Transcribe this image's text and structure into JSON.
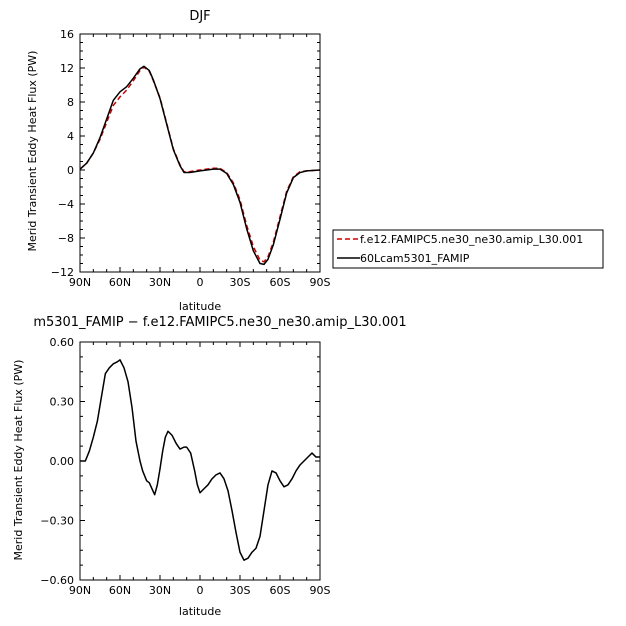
{
  "chart_data": [
    {
      "type": "line",
      "title": "DJF",
      "xlabel": "latitude",
      "ylabel": "Merid Transient Eddy Heat Flux (PW)",
      "xlim": [
        90,
        -90
      ],
      "ylim": [
        -12,
        16
      ],
      "xticks": [
        90,
        60,
        30,
        0,
        -30,
        -60,
        -90
      ],
      "xtick_labels": [
        "90N",
        "60N",
        "30N",
        "0",
        "30S",
        "60S",
        "90S"
      ],
      "yticks": [
        -12,
        -8,
        -4,
        0,
        4,
        8,
        12,
        16
      ],
      "ytick_labels": [
        "−12",
        "−8",
        "−4",
        "0",
        "4",
        "8",
        "12",
        "16"
      ],
      "legend_position": "right",
      "series": [
        {
          "name": "f.e12.FAMIPC5.ne30_ne30.amip_L30.001",
          "color": "#cc0000",
          "dash": "dashed",
          "points": [
            [
              90,
              0.1
            ],
            [
              85,
              0.8
            ],
            [
              80,
              2.0
            ],
            [
              75,
              3.6
            ],
            [
              70,
              5.6
            ],
            [
              65,
              7.6
            ],
            [
              60,
              8.6
            ],
            [
              55,
              9.4
            ],
            [
              50,
              10.5
            ],
            [
              45,
              11.7
            ],
            [
              42,
              12.1
            ],
            [
              38,
              11.6
            ],
            [
              35,
              10.5
            ],
            [
              30,
              8.5
            ],
            [
              25,
              5.5
            ],
            [
              20,
              2.5
            ],
            [
              15,
              0.6
            ],
            [
              12,
              -0.2
            ],
            [
              8,
              -0.2
            ],
            [
              4,
              -0.1
            ],
            [
              0,
              0.0
            ],
            [
              -5,
              0.1
            ],
            [
              -10,
              0.2
            ],
            [
              -15,
              0.2
            ],
            [
              -20,
              -0.3
            ],
            [
              -25,
              -1.5
            ],
            [
              -30,
              -3.5
            ],
            [
              -35,
              -6.5
            ],
            [
              -40,
              -9.0
            ],
            [
              -45,
              -10.6
            ],
            [
              -48,
              -10.8
            ],
            [
              -51,
              -10.2
            ],
            [
              -55,
              -8.5
            ],
            [
              -60,
              -5.5
            ],
            [
              -65,
              -2.5
            ],
            [
              -70,
              -0.8
            ],
            [
              -75,
              -0.2
            ],
            [
              -80,
              -0.1
            ],
            [
              -90,
              0.0
            ]
          ]
        },
        {
          "name": "60Lcam5301_FAMIP",
          "color": "#000000",
          "dash": "solid",
          "points": [
            [
              90,
              0.1
            ],
            [
              85,
              0.8
            ],
            [
              80,
              2.0
            ],
            [
              75,
              3.8
            ],
            [
              70,
              6.0
            ],
            [
              65,
              8.2
            ],
            [
              60,
              9.2
            ],
            [
              55,
              9.8
            ],
            [
              50,
              10.8
            ],
            [
              45,
              11.9
            ],
            [
              42,
              12.2
            ],
            [
              38,
              11.7
            ],
            [
              35,
              10.6
            ],
            [
              30,
              8.4
            ],
            [
              25,
              5.4
            ],
            [
              20,
              2.4
            ],
            [
              15,
              0.5
            ],
            [
              12,
              -0.3
            ],
            [
              8,
              -0.3
            ],
            [
              4,
              -0.2
            ],
            [
              0,
              -0.1
            ],
            [
              -5,
              0.0
            ],
            [
              -10,
              0.1
            ],
            [
              -15,
              0.1
            ],
            [
              -20,
              -0.4
            ],
            [
              -25,
              -1.7
            ],
            [
              -30,
              -3.8
            ],
            [
              -35,
              -6.9
            ],
            [
              -40,
              -9.5
            ],
            [
              -45,
              -11.0
            ],
            [
              -48,
              -11.1
            ],
            [
              -51,
              -10.5
            ],
            [
              -55,
              -8.8
            ],
            [
              -60,
              -5.8
            ],
            [
              -65,
              -2.7
            ],
            [
              -70,
              -0.9
            ],
            [
              -75,
              -0.3
            ],
            [
              -80,
              -0.1
            ],
            [
              -90,
              0.0
            ]
          ]
        }
      ]
    },
    {
      "type": "line",
      "title": "m5301_FAMIP − f.e12.FAMIPC5.ne30_ne30.amip_L30.001",
      "xlabel": "latitude",
      "ylabel": "Merid Transient Eddy Heat Flux (PW)",
      "xlim": [
        90,
        -90
      ],
      "ylim": [
        -0.6,
        0.6
      ],
      "xticks": [
        90,
        60,
        30,
        0,
        -30,
        -60,
        -90
      ],
      "xtick_labels": [
        "90N",
        "60N",
        "30N",
        "0",
        "30S",
        "60S",
        "90S"
      ],
      "yticks": [
        -0.6,
        -0.3,
        0.0,
        0.3,
        0.6
      ],
      "ytick_labels": [
        "−0.60",
        "−0.30",
        "0.00",
        "0.30",
        "0.60"
      ],
      "series": [
        {
          "color": "#000000",
          "dash": "solid",
          "points": [
            [
              90,
              0.0
            ],
            [
              86,
              0.0
            ],
            [
              83,
              0.05
            ],
            [
              80,
              0.12
            ],
            [
              77,
              0.2
            ],
            [
              74,
              0.32
            ],
            [
              71,
              0.44
            ],
            [
              68,
              0.47
            ],
            [
              65,
              0.49
            ],
            [
              62,
              0.5
            ],
            [
              60,
              0.51
            ],
            [
              57,
              0.47
            ],
            [
              54,
              0.4
            ],
            [
              51,
              0.27
            ],
            [
              48,
              0.1
            ],
            [
              45,
              0.0
            ],
            [
              43,
              -0.05
            ],
            [
              40,
              -0.1
            ],
            [
              38,
              -0.11
            ],
            [
              36,
              -0.14
            ],
            [
              34,
              -0.17
            ],
            [
              32,
              -0.12
            ],
            [
              30,
              -0.04
            ],
            [
              28,
              0.05
            ],
            [
              26,
              0.12
            ],
            [
              24,
              0.15
            ],
            [
              21,
              0.13
            ],
            [
              18,
              0.09
            ],
            [
              15,
              0.06
            ],
            [
              12,
              0.07
            ],
            [
              10,
              0.07
            ],
            [
              7,
              0.04
            ],
            [
              4,
              -0.05
            ],
            [
              2,
              -0.12
            ],
            [
              0,
              -0.16
            ],
            [
              -3,
              -0.14
            ],
            [
              -6,
              -0.12
            ],
            [
              -9,
              -0.09
            ],
            [
              -12,
              -0.07
            ],
            [
              -15,
              -0.06
            ],
            [
              -18,
              -0.09
            ],
            [
              -21,
              -0.15
            ],
            [
              -24,
              -0.25
            ],
            [
              -27,
              -0.36
            ],
            [
              -30,
              -0.46
            ],
            [
              -33,
              -0.5
            ],
            [
              -36,
              -0.49
            ],
            [
              -39,
              -0.46
            ],
            [
              -42,
              -0.44
            ],
            [
              -45,
              -0.38
            ],
            [
              -48,
              -0.25
            ],
            [
              -51,
              -0.12
            ],
            [
              -54,
              -0.05
            ],
            [
              -57,
              -0.06
            ],
            [
              -60,
              -0.1
            ],
            [
              -63,
              -0.13
            ],
            [
              -66,
              -0.12
            ],
            [
              -69,
              -0.09
            ],
            [
              -72,
              -0.05
            ],
            [
              -75,
              -0.02
            ],
            [
              -78,
              0.0
            ],
            [
              -81,
              0.02
            ],
            [
              -84,
              0.04
            ],
            [
              -87,
              0.02
            ],
            [
              -90,
              0.02
            ]
          ]
        }
      ]
    }
  ]
}
